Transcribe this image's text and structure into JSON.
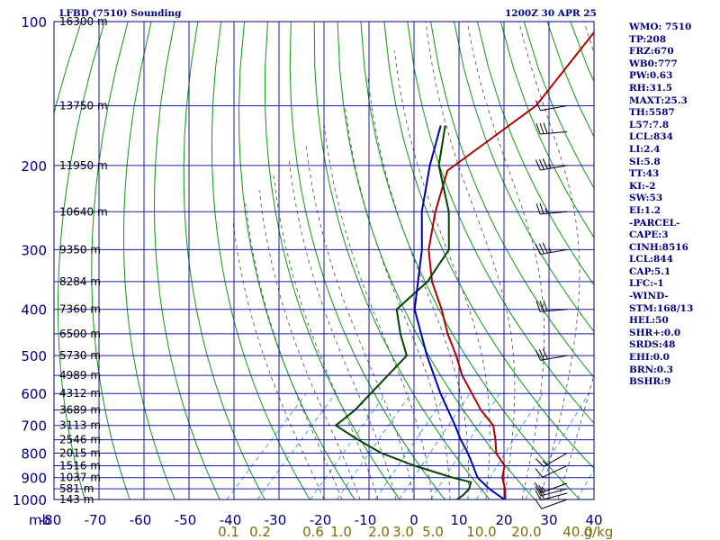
{
  "header": {
    "station_title": "LFBD (7510) Sounding",
    "valid_time": "1200Z 30 APR 25"
  },
  "colors": {
    "frame": "#000080",
    "isobar": "#1a1aa8",
    "isotherm": "#1a1aa8",
    "dry_adiabat": "#0a9a0a",
    "moist_adiabat": "#1a1a1a",
    "mixing_ratio": "#4aa0e0",
    "temperature": "#b00000",
    "dewpoint": "#004400",
    "parcel": "#0000b0",
    "wind_barb": "#000000",
    "mixing_label": "#7a7000"
  },
  "chart_data": {
    "type": "line",
    "title": "LFBD (7510) Sounding",
    "xlabel": "",
    "ylabel": "mb",
    "xlim": [
      -80,
      40
    ],
    "ylim": [
      1000,
      100
    ],
    "y_scale": "log",
    "skew": true,
    "isobars": [
      1000,
      900,
      800,
      700,
      600,
      500,
      400,
      300,
      200,
      100
    ],
    "pressure_tick_labels": [
      "100",
      "200",
      "300",
      "400",
      "500",
      "600",
      "700",
      "800",
      "900",
      "1000"
    ],
    "temperature_ticks": [
      -80,
      -70,
      -60,
      -50,
      -40,
      -30,
      -20,
      -10,
      0,
      10,
      20,
      30,
      40
    ],
    "temperature_tick_labels": [
      "-80",
      "-70",
      "-60",
      "-50",
      "-40",
      "-30",
      "-20",
      "-10",
      "0",
      "10",
      "20",
      "30",
      "40"
    ],
    "x_axis_corner_label": "mb",
    "mixing_ratio_labels": [
      "0.1",
      "0.2",
      "0.6",
      "1.0",
      "2.0",
      "3.0",
      "5.0",
      "10.0",
      "20.0",
      "40.0",
      "g/kg"
    ],
    "height_labels": [
      {
        "p": 1000,
        "text": "143 m"
      },
      {
        "p": 950,
        "text": "581 m"
      },
      {
        "p": 900,
        "text": "1037 m"
      },
      {
        "p": 850,
        "text": "1516 m"
      },
      {
        "p": 800,
        "text": "2015 m"
      },
      {
        "p": 750,
        "text": "2546 m"
      },
      {
        "p": 700,
        "text": "3113 m"
      },
      {
        "p": 650,
        "text": "3689 m"
      },
      {
        "p": 600,
        "text": "4312 m"
      },
      {
        "p": 550,
        "text": "4989 m"
      },
      {
        "p": 500,
        "text": "5730 m"
      },
      {
        "p": 450,
        "text": "6500 m"
      },
      {
        "p": 400,
        "text": "7360 m"
      },
      {
        "p": 350,
        "text": "8284 m"
      },
      {
        "p": 300,
        "text": "9350 m"
      },
      {
        "p": 250,
        "text": "10640 m"
      },
      {
        "p": 200,
        "text": "11950 m"
      },
      {
        "p": 150,
        "text": "13750 m"
      },
      {
        "p": 100,
        "text": "16300 m"
      }
    ],
    "series": [
      {
        "name": "",
        "kind": "temperature",
        "p": [
          1004,
          950,
          900,
          850,
          800,
          750,
          700,
          650,
          600,
          550,
          500,
          450,
          400,
          350,
          300,
          250,
          205,
          195,
          150,
          100
        ],
        "t": [
          20.5,
          18,
          15,
          13,
          8.5,
          5.5,
          2,
          -4,
          -9.5,
          -15.5,
          -21,
          -27.5,
          -34,
          -42,
          -49.5,
          -56,
          -62,
          -61,
          -56,
          -59
        ]
      },
      {
        "name": "",
        "kind": "dewpoint",
        "p": [
          1004,
          980,
          950,
          920,
          900,
          850,
          800,
          750,
          700,
          650,
          600,
          550,
          500,
          450,
          400,
          350,
          300,
          250,
          200,
          165
        ],
        "t": [
          9.5,
          10,
          10,
          9,
          4,
          -7,
          -17,
          -25,
          -33,
          -32,
          -32,
          -32,
          -32,
          -38,
          -44,
          -43,
          -45,
          -53,
          -65,
          -72
        ]
      },
      {
        "name": "",
        "kind": "parcel",
        "p": [
          1004,
          950,
          900,
          850,
          800,
          750,
          700,
          600,
          500,
          400,
          300,
          250,
          200,
          165
        ],
        "t": [
          20.5,
          14.5,
          9.5,
          6,
          2.2,
          -2.2,
          -6.5,
          -16.5,
          -27.5,
          -40,
          -51,
          -59,
          -67,
          -73
        ]
      }
    ],
    "winds": [
      {
        "p": 1000,
        "dir": 250,
        "kt": 10
      },
      {
        "p": 970,
        "dir": 255,
        "kt": 20
      },
      {
        "p": 950,
        "dir": 255,
        "kt": 20
      },
      {
        "p": 925,
        "dir": 250,
        "kt": 15
      },
      {
        "p": 850,
        "dir": 245,
        "kt": 10
      },
      {
        "p": 800,
        "dir": 240,
        "kt": 15
      },
      {
        "p": 500,
        "dir": 260,
        "kt": 30
      },
      {
        "p": 400,
        "dir": 265,
        "kt": 30
      },
      {
        "p": 300,
        "dir": 260,
        "kt": 35
      },
      {
        "p": 250,
        "dir": 265,
        "kt": 25
      },
      {
        "p": 200,
        "dir": 260,
        "kt": 35
      },
      {
        "p": 170,
        "dir": 265,
        "kt": 30
      },
      {
        "p": 150,
        "dir": 260,
        "kt": 10
      }
    ]
  },
  "indices": [
    "WMO: 7510",
    "TP:208",
    "FRZ:670",
    "WB0:777",
    "PW:0.63",
    "RH:31.5",
    "MAXT:25.3",
    "TH:5587",
    "L57:7.8",
    "LCL:834",
    "LI:2.4",
    "SI:5.8",
    "TT:43",
    "KI:-2",
    "SW:53",
    "EI:1.2",
    "-PARCEL-",
    "CAPE:3",
    "CINH:8516",
    "LCL:844",
    "CAP:5.1",
    "LFC:-1",
    "-WIND-",
    "STM:168/13",
    "HEL:50",
    "SHR+:0.0",
    "SRDS:48",
    "EHI:0.0",
    "BRN:0.3",
    "BSHR:9"
  ]
}
